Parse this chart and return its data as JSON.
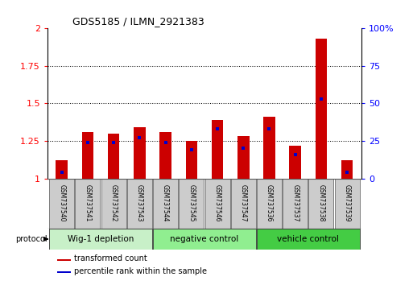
{
  "title": "GDS5185 / ILMN_2921383",
  "samples": [
    "GSM737540",
    "GSM737541",
    "GSM737542",
    "GSM737543",
    "GSM737544",
    "GSM737545",
    "GSM737546",
    "GSM737547",
    "GSM737536",
    "GSM737537",
    "GSM737538",
    "GSM737539"
  ],
  "transformed_count": [
    1.12,
    1.31,
    1.3,
    1.34,
    1.31,
    1.25,
    1.39,
    1.28,
    1.41,
    1.22,
    1.93,
    1.12
  ],
  "percentile_rank": [
    4,
    24,
    24,
    27,
    24,
    19,
    33,
    20,
    33,
    16,
    53,
    4
  ],
  "groups": [
    {
      "label": "Wig-1 depletion",
      "start": 0,
      "end": 3,
      "color": "#c8f0c8"
    },
    {
      "label": "negative control",
      "start": 4,
      "end": 7,
      "color": "#90ee90"
    },
    {
      "label": "vehicle control",
      "start": 8,
      "end": 11,
      "color": "#44cc44"
    }
  ],
  "ylim_left": [
    1.0,
    2.0
  ],
  "ylim_right": [
    0,
    100
  ],
  "yticks_left": [
    1.0,
    1.25,
    1.5,
    1.75,
    2.0
  ],
  "yticks_right": [
    0,
    25,
    50,
    75,
    100
  ],
  "ytick_labels_left": [
    "1",
    "1.25",
    "1.5",
    "1.75",
    "2"
  ],
  "ytick_labels_right": [
    "0",
    "25",
    "50",
    "75",
    "100%"
  ],
  "bar_color_red": "#cc0000",
  "bar_color_blue": "#0000cc",
  "bar_width": 0.45,
  "background_color": "#ffffff",
  "legend_red": "transformed count",
  "legend_blue": "percentile rank within the sample",
  "sample_box_color": "#cccccc",
  "title_fontsize": 9,
  "axis_fontsize": 8,
  "sample_fontsize": 5.5,
  "group_fontsize": 7.5,
  "legend_fontsize": 7
}
